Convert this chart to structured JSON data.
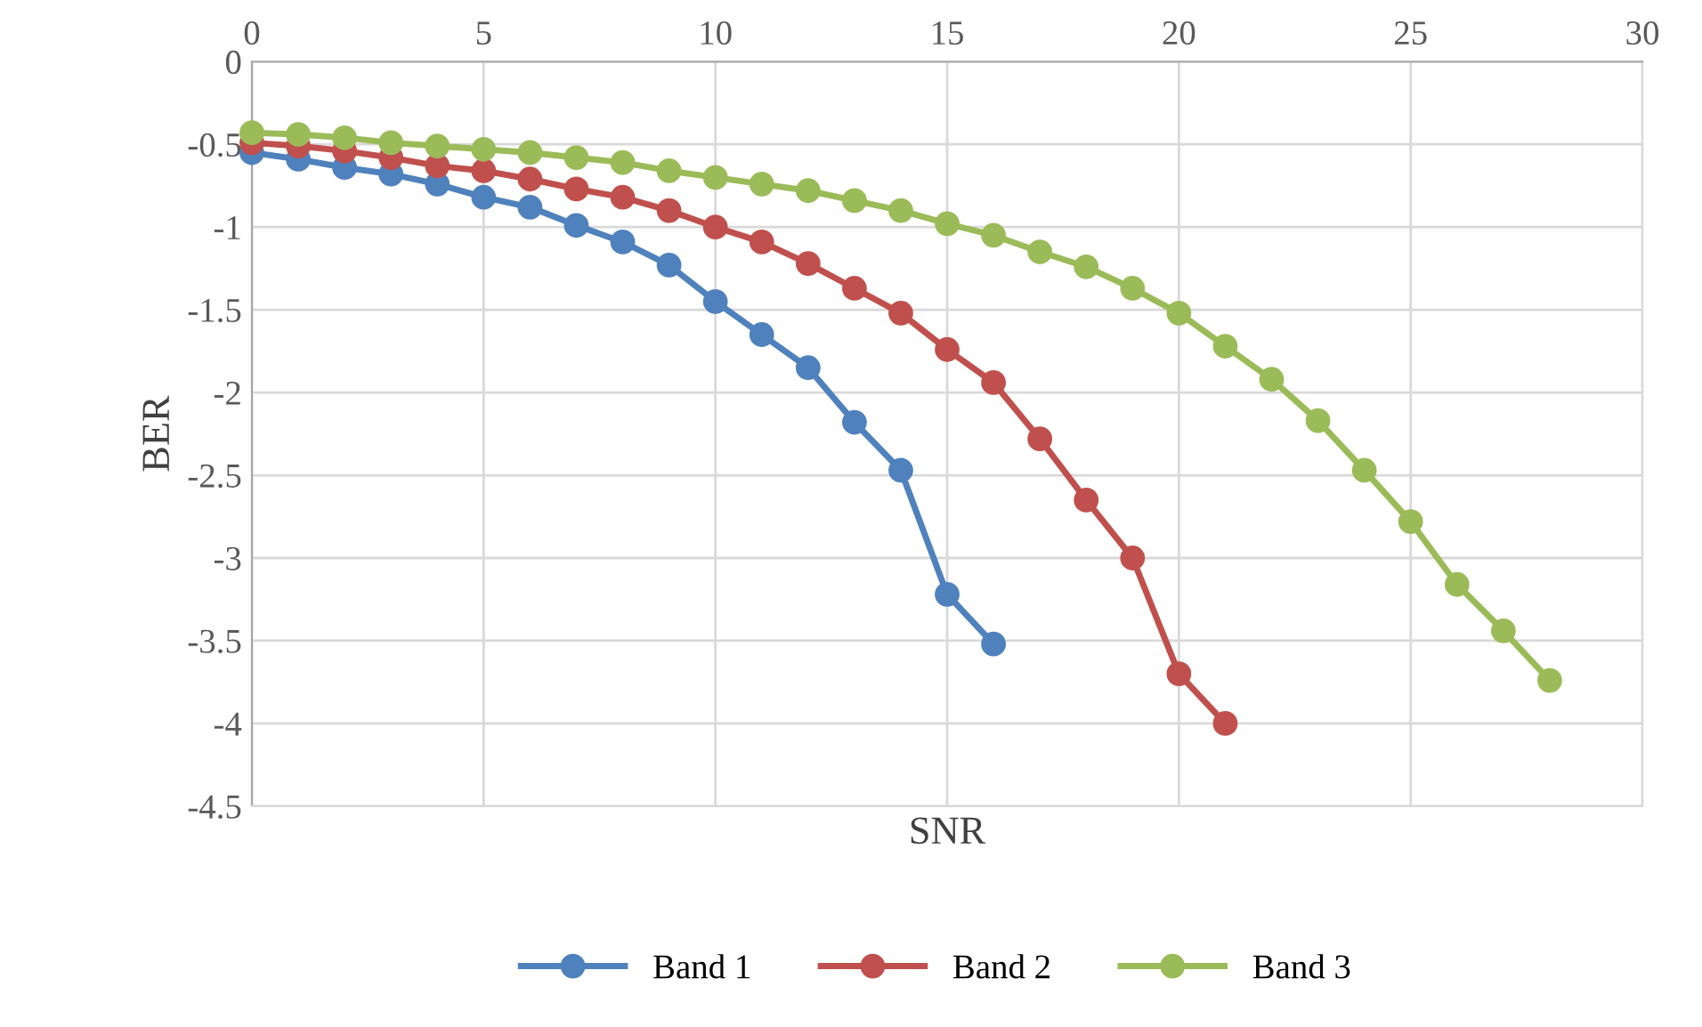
{
  "chart_data": {
    "type": "line",
    "xlabel": "SNR",
    "ylabel": "BER",
    "xlim": [
      0,
      30
    ],
    "ylim": [
      -4.5,
      0
    ],
    "xticks": [
      0,
      5,
      10,
      15,
      20,
      25,
      30
    ],
    "yticks": [
      -4.5,
      -4,
      -3.5,
      -3,
      -2.5,
      -2,
      -1.5,
      -1,
      -0.5,
      0
    ],
    "grid": true,
    "legend": "bottom",
    "marker": "circle",
    "line_style": "solid",
    "series": [
      {
        "name": "Band 1",
        "color": "#4f81bd",
        "x": [
          0,
          1,
          2,
          3,
          4,
          5,
          6,
          7,
          8,
          9,
          10,
          11,
          12,
          13,
          14,
          15,
          16
        ],
        "values": [
          -0.55,
          -0.59,
          -0.64,
          -0.68,
          -0.74,
          -0.82,
          -0.88,
          -0.99,
          -1.09,
          -1.23,
          -1.45,
          -1.65,
          -1.85,
          -2.18,
          -2.47,
          -3.22,
          -3.52
        ]
      },
      {
        "name": "Band 2",
        "color": "#c0504d",
        "x": [
          0,
          1,
          2,
          3,
          4,
          5,
          6,
          7,
          8,
          9,
          10,
          11,
          12,
          13,
          14,
          15,
          16,
          17,
          18,
          19,
          20,
          21
        ],
        "values": [
          -0.49,
          -0.51,
          -0.54,
          -0.58,
          -0.63,
          -0.66,
          -0.71,
          -0.77,
          -0.82,
          -0.9,
          -1.0,
          -1.09,
          -1.22,
          -1.37,
          -1.52,
          -1.74,
          -1.94,
          -2.28,
          -2.65,
          -3.0,
          -3.7,
          -4.0
        ]
      },
      {
        "name": "Band 3",
        "color": "#9bbb59",
        "x": [
          0,
          1,
          2,
          3,
          4,
          5,
          6,
          7,
          8,
          9,
          10,
          11,
          12,
          13,
          14,
          15,
          16,
          17,
          18,
          19,
          20,
          21,
          22,
          23,
          24,
          25,
          26,
          27,
          28
        ],
        "values": [
          -0.43,
          -0.44,
          -0.46,
          -0.49,
          -0.51,
          -0.53,
          -0.55,
          -0.58,
          -0.61,
          -0.66,
          -0.7,
          -0.74,
          -0.78,
          -0.84,
          -0.9,
          -0.98,
          -1.05,
          -1.15,
          -1.24,
          -1.37,
          -1.52,
          -1.72,
          -1.92,
          -2.17,
          -2.47,
          -2.78,
          -3.16,
          -3.44,
          -3.74
        ]
      }
    ]
  }
}
